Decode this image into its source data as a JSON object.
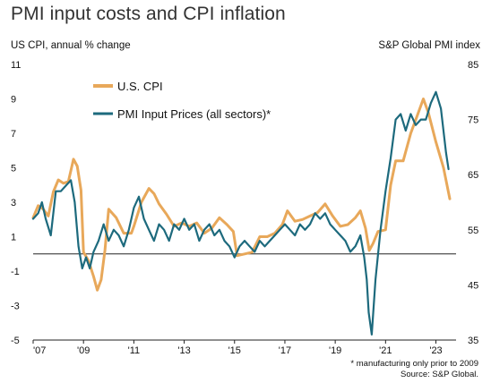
{
  "title": "PMI input costs and CPI inflation",
  "left_axis_title": "US CPI, annual % change",
  "right_axis_title": "S&P Global PMI index",
  "footnote": "* manufacturing only prior to 2009",
  "source": "Source: S&P Global.",
  "chart_data": {
    "type": "line",
    "x_labels": [
      "'07",
      "'09",
      "'11",
      "'13",
      "'15",
      "'17",
      "'19",
      "'21",
      "'23"
    ],
    "x_range": [
      2007.0,
      2023.8
    ],
    "left_axis": {
      "ylim": [
        -5,
        11
      ],
      "ticks": [
        -5,
        -3,
        -1,
        1,
        3,
        5,
        7,
        9,
        11
      ]
    },
    "right_axis": {
      "ylim": [
        35,
        85
      ],
      "ticks": [
        35,
        45,
        55,
        65,
        75,
        85
      ]
    },
    "legend_position": "top-left",
    "colors": {
      "cpi": "#e8a85a",
      "pmi": "#1d6a7d"
    },
    "series": [
      {
        "name": "U.S. CPI",
        "axis": "left",
        "color": "#e8a85a",
        "x": [
          2007.0,
          2007.2,
          2007.4,
          2007.6,
          2007.8,
          2008.0,
          2008.2,
          2008.4,
          2008.6,
          2008.75,
          2008.9,
          2009.0,
          2009.2,
          2009.4,
          2009.55,
          2009.7,
          2009.85,
          2010.0,
          2010.3,
          2010.6,
          2010.9,
          2011.0,
          2011.3,
          2011.6,
          2011.8,
          2012.0,
          2012.3,
          2012.6,
          2012.9,
          2013.2,
          2013.5,
          2013.8,
          2014.1,
          2014.4,
          2014.7,
          2014.95,
          2015.1,
          2015.4,
          2015.7,
          2016.0,
          2016.3,
          2016.6,
          2016.9,
          2017.1,
          2017.4,
          2017.7,
          2018.0,
          2018.3,
          2018.6,
          2018.9,
          2019.2,
          2019.5,
          2019.8,
          2020.0,
          2020.2,
          2020.35,
          2020.5,
          2020.7,
          2021.0,
          2021.2,
          2021.4,
          2021.7,
          2022.0,
          2022.3,
          2022.5,
          2022.7,
          2023.0,
          2023.3,
          2023.55
        ],
        "y": [
          2.1,
          2.8,
          2.6,
          2.2,
          3.6,
          4.3,
          4.1,
          4.2,
          5.5,
          5.1,
          3.7,
          0.1,
          -0.4,
          -1.3,
          -2.1,
          -1.5,
          0.2,
          2.6,
          2.1,
          1.2,
          1.2,
          1.6,
          3.0,
          3.8,
          3.5,
          2.9,
          2.3,
          1.6,
          1.8,
          1.6,
          1.8,
          1.2,
          1.5,
          2.1,
          1.7,
          1.3,
          -0.1,
          0.0,
          0.1,
          1.0,
          1.0,
          1.2,
          1.7,
          2.5,
          1.9,
          2.0,
          2.2,
          2.4,
          2.9,
          2.2,
          1.6,
          1.7,
          2.1,
          2.5,
          1.5,
          0.2,
          0.6,
          1.3,
          1.4,
          4.0,
          5.4,
          5.4,
          7.0,
          8.2,
          9.0,
          8.2,
          6.5,
          5.0,
          3.2
        ]
      },
      {
        "name": "PMI Input Prices (all sectors)*",
        "axis": "right",
        "color": "#1d6a7d",
        "x": [
          2007.0,
          2007.2,
          2007.35,
          2007.5,
          2007.7,
          2007.9,
          2008.1,
          2008.3,
          2008.5,
          2008.65,
          2008.8,
          2008.95,
          2009.1,
          2009.25,
          2009.4,
          2009.6,
          2009.8,
          2010.0,
          2010.2,
          2010.4,
          2010.6,
          2010.8,
          2011.0,
          2011.2,
          2011.4,
          2011.6,
          2011.8,
          2012.0,
          2012.2,
          2012.4,
          2012.6,
          2012.8,
          2013.0,
          2013.2,
          2013.4,
          2013.6,
          2013.8,
          2014.0,
          2014.2,
          2014.4,
          2014.6,
          2014.8,
          2015.0,
          2015.2,
          2015.4,
          2015.6,
          2015.8,
          2016.0,
          2016.2,
          2016.4,
          2016.6,
          2016.8,
          2017.0,
          2017.2,
          2017.4,
          2017.6,
          2017.8,
          2018.0,
          2018.2,
          2018.4,
          2018.6,
          2018.8,
          2019.0,
          2019.2,
          2019.4,
          2019.6,
          2019.8,
          2020.0,
          2020.15,
          2020.25,
          2020.33,
          2020.45,
          2020.6,
          2020.8,
          2021.0,
          2021.2,
          2021.4,
          2021.6,
          2021.8,
          2022.0,
          2022.2,
          2022.4,
          2022.6,
          2022.8,
          2023.0,
          2023.2,
          2023.4,
          2023.5
        ],
        "y": [
          57,
          58,
          60,
          57,
          54,
          62,
          62,
          63,
          64,
          60,
          52,
          48,
          50,
          48,
          51,
          53,
          56,
          53,
          55,
          54,
          52,
          55,
          59,
          61,
          57,
          55,
          53,
          56,
          55,
          53,
          56,
          55,
          57,
          55,
          56,
          53,
          55,
          56,
          54,
          55,
          53,
          52,
          50,
          52,
          53,
          52,
          51,
          53,
          52,
          53,
          54,
          55,
          56,
          55,
          54,
          56,
          55,
          56,
          58,
          57,
          58,
          56,
          55,
          54,
          53,
          51,
          52,
          54,
          50,
          46,
          40,
          36,
          46,
          55,
          62,
          68,
          75,
          76,
          73,
          76,
          74,
          75,
          75,
          78,
          80,
          77,
          69,
          66
        ]
      }
    ]
  }
}
